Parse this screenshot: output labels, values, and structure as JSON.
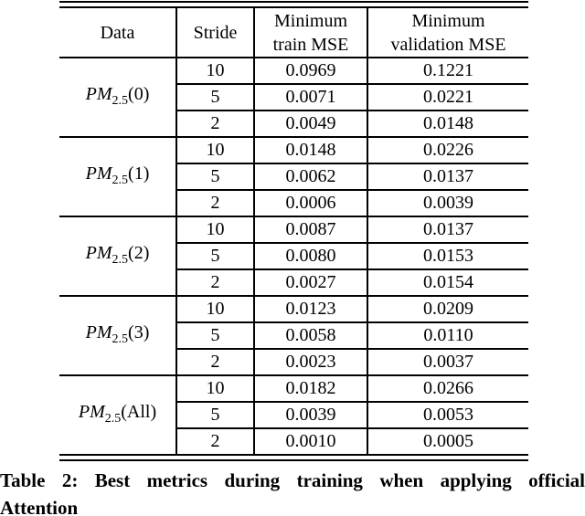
{
  "colors": {
    "text": "#000000",
    "rule": "#000000",
    "background": "#ffffff"
  },
  "table": {
    "headers": [
      "Data",
      "Stride",
      "Minimum\ntrain MSE",
      "Minimum\nvalidation MSE"
    ],
    "groups": [
      {
        "label": {
          "prefix": "PM",
          "sub": "2.5",
          "suffix": "(0)"
        },
        "rows": [
          {
            "stride": "10",
            "train_mse": "0.0969",
            "val_mse": "0.1221"
          },
          {
            "stride": "5",
            "train_mse": "0.0071",
            "val_mse": "0.0221"
          },
          {
            "stride": "2",
            "train_mse": "0.0049",
            "val_mse": "0.0148"
          }
        ]
      },
      {
        "label": {
          "prefix": "PM",
          "sub": "2.5",
          "suffix": "(1)"
        },
        "rows": [
          {
            "stride": "10",
            "train_mse": "0.0148",
            "val_mse": "0.0226"
          },
          {
            "stride": "5",
            "train_mse": "0.0062",
            "val_mse": "0.0137"
          },
          {
            "stride": "2",
            "train_mse": "0.0006",
            "val_mse": "0.0039"
          }
        ]
      },
      {
        "label": {
          "prefix": "PM",
          "sub": "2.5",
          "suffix": "(2)"
        },
        "rows": [
          {
            "stride": "10",
            "train_mse": "0.0087",
            "val_mse": "0.0137"
          },
          {
            "stride": "5",
            "train_mse": "0.0080",
            "val_mse": "0.0153"
          },
          {
            "stride": "2",
            "train_mse": "0.0027",
            "val_mse": "0.0154"
          }
        ]
      },
      {
        "label": {
          "prefix": "PM",
          "sub": "2.5",
          "suffix": "(3)"
        },
        "rows": [
          {
            "stride": "10",
            "train_mse": "0.0123",
            "val_mse": "0.0209"
          },
          {
            "stride": "5",
            "train_mse": "0.0058",
            "val_mse": "0.0110"
          },
          {
            "stride": "2",
            "train_mse": "0.0023",
            "val_mse": "0.0037"
          }
        ]
      },
      {
        "label": {
          "prefix": "PM",
          "sub": "2.5",
          "suffix": "(All)"
        },
        "rows": [
          {
            "stride": "10",
            "train_mse": "0.0182",
            "val_mse": "0.0266"
          },
          {
            "stride": "5",
            "train_mse": "0.0039",
            "val_mse": "0.0053"
          },
          {
            "stride": "2",
            "train_mse": "0.0010",
            "val_mse": "0.0005"
          }
        ]
      }
    ]
  },
  "caption": {
    "line1": "Table 2: Best metrics during training when applying official",
    "line2": "Attention"
  }
}
